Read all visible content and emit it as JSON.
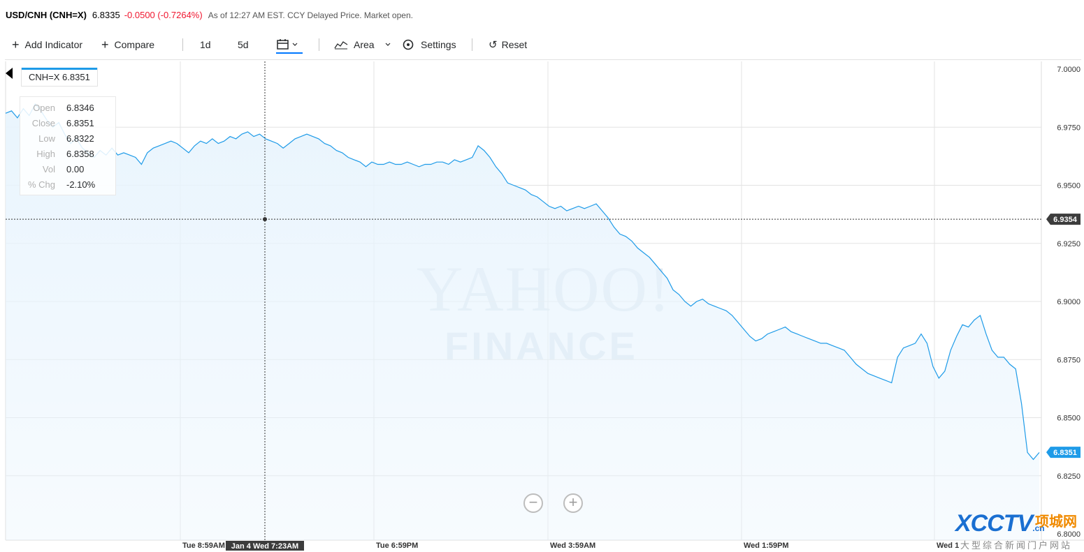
{
  "quote": {
    "symbol": "USD/CNH (CNH=X)",
    "price": "6.8335",
    "change": "-0.0500 (-0.7264%)",
    "as_of": "As of 12:27 AM EST. CCY Delayed Price. Market open."
  },
  "toolbar": {
    "add_indicator": "Add Indicator",
    "compare": "Compare",
    "range_1d": "1d",
    "range_5d": "5d",
    "chart_type": "Area",
    "settings": "Settings",
    "reset": "Reset"
  },
  "tooltip": {
    "symbol_label": "CNH=X 6.8351",
    "rows": [
      {
        "key": "Open",
        "value": "6.8346"
      },
      {
        "key": "Close",
        "value": "6.8351"
      },
      {
        "key": "Low",
        "value": "6.8322"
      },
      {
        "key": "High",
        "value": "6.8358"
      },
      {
        "key": "Vol",
        "value": "0.00"
      },
      {
        "key": "% Chg",
        "value": "-2.10%"
      }
    ]
  },
  "colors": {
    "line": "#1e9be8",
    "area": "#e8f4fd",
    "negative": "#f0162f",
    "crosshair_tag": "#3c3c3c",
    "last_price_tag": "#1e9be8"
  },
  "watermark": {
    "line1": "YAHOO!",
    "line2": "FINANCE"
  },
  "logo": {
    "main": "XCCTV",
    "domain": ".cn",
    "cn_name": "项城网",
    "tagline": "大型综合新闻门户网站"
  },
  "chart_data": {
    "type": "area",
    "title": "",
    "xlabel": "",
    "ylabel": "",
    "ylim": [
      6.8,
      7.0
    ],
    "y_ticks": [
      "7.0000",
      "6.9750",
      "6.9500",
      "6.9250",
      "6.9000",
      "6.8750",
      "6.8500",
      "6.8250",
      "6.8000"
    ],
    "x_tick_labels": [
      "Tue 8:59AM",
      "Tue 6:59PM",
      "Wed 3:59AM",
      "Wed 1:59PM",
      "Wed 1"
    ],
    "crosshair_x_label": "Jan 4 Wed 7:23AM",
    "crosshair_y_label": "6.9354",
    "last_price_label": "6.8351",
    "grid": true,
    "series": [
      {
        "values": [
          6.981,
          6.982,
          6.979,
          6.983,
          6.98,
          6.985,
          6.982,
          6.978,
          6.975,
          6.977,
          6.972,
          6.968,
          6.97,
          6.966,
          6.964,
          6.962,
          6.965,
          6.963,
          6.966,
          6.963,
          6.964,
          6.963,
          6.962,
          6.959,
          6.964,
          6.966,
          6.967,
          6.968,
          6.969,
          6.968,
          6.966,
          6.964,
          6.967,
          6.969,
          6.968,
          6.97,
          6.968,
          6.969,
          6.971,
          6.97,
          6.972,
          6.973,
          6.971,
          6.972,
          6.97,
          6.969,
          6.968,
          6.966,
          6.968,
          6.97,
          6.971,
          6.972,
          6.971,
          6.97,
          6.968,
          6.967,
          6.965,
          6.964,
          6.962,
          6.961,
          6.96,
          6.958,
          6.96,
          6.959,
          6.959,
          6.96,
          6.959,
          6.959,
          6.96,
          6.959,
          6.958,
          6.959,
          6.959,
          6.96,
          6.96,
          6.959,
          6.961,
          6.96,
          6.961,
          6.962,
          6.967,
          6.965,
          6.962,
          6.958,
          6.955,
          6.951,
          6.95,
          6.949,
          6.948,
          6.946,
          6.945,
          6.943,
          6.941,
          6.94,
          6.941,
          6.939,
          6.94,
          6.941,
          6.94,
          6.941,
          6.942,
          6.939,
          6.936,
          6.932,
          6.929,
          6.928,
          6.926,
          6.923,
          6.921,
          6.919,
          6.916,
          6.913,
          6.91,
          6.905,
          6.903,
          6.9,
          6.898,
          6.9,
          6.901,
          6.899,
          6.898,
          6.897,
          6.896,
          6.894,
          6.891,
          6.888,
          6.885,
          6.883,
          6.884,
          6.886,
          6.887,
          6.888,
          6.889,
          6.887,
          6.886,
          6.885,
          6.884,
          6.883,
          6.882,
          6.882,
          6.881,
          6.88,
          6.879,
          6.876,
          6.873,
          6.871,
          6.869,
          6.868,
          6.867,
          6.866,
          6.865,
          6.876,
          6.88,
          6.881,
          6.882,
          6.886,
          6.882,
          6.872,
          6.867,
          6.87,
          6.879,
          6.885,
          6.89,
          6.889,
          6.892,
          6.894,
          6.886,
          6.879,
          6.876,
          6.876,
          6.873,
          6.871,
          6.856,
          6.835,
          6.832,
          6.835
        ]
      }
    ]
  }
}
